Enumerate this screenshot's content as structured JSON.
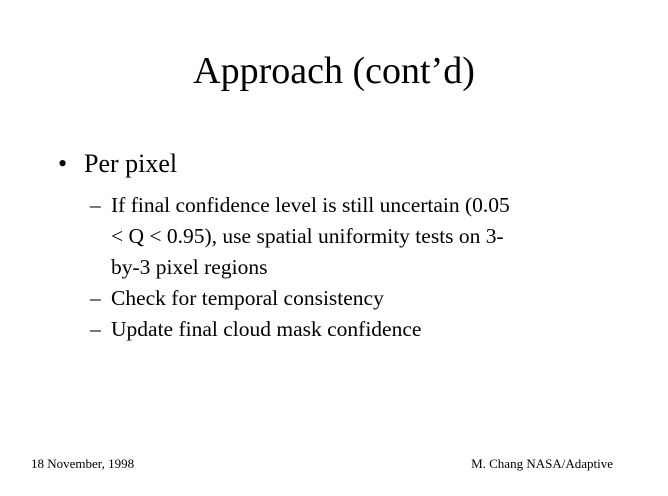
{
  "slide": {
    "title": "Approach (cont’d)",
    "bullet": {
      "marker": "•",
      "text": "Per pixel",
      "sub_marker": "–",
      "subitems": [
        {
          "lines": [
            "If final confidence level is still uncertain (0.05",
            "< Q < 0.95), use spatial uniformity tests on 3-",
            "by-3 pixel regions"
          ]
        },
        {
          "lines": [
            "Check for temporal consistency"
          ]
        },
        {
          "lines": [
            "Update final cloud mask confidence"
          ]
        }
      ]
    },
    "footer": {
      "date": "18 November, 1998",
      "author": "M. Chang NASA/Adaptive"
    }
  }
}
